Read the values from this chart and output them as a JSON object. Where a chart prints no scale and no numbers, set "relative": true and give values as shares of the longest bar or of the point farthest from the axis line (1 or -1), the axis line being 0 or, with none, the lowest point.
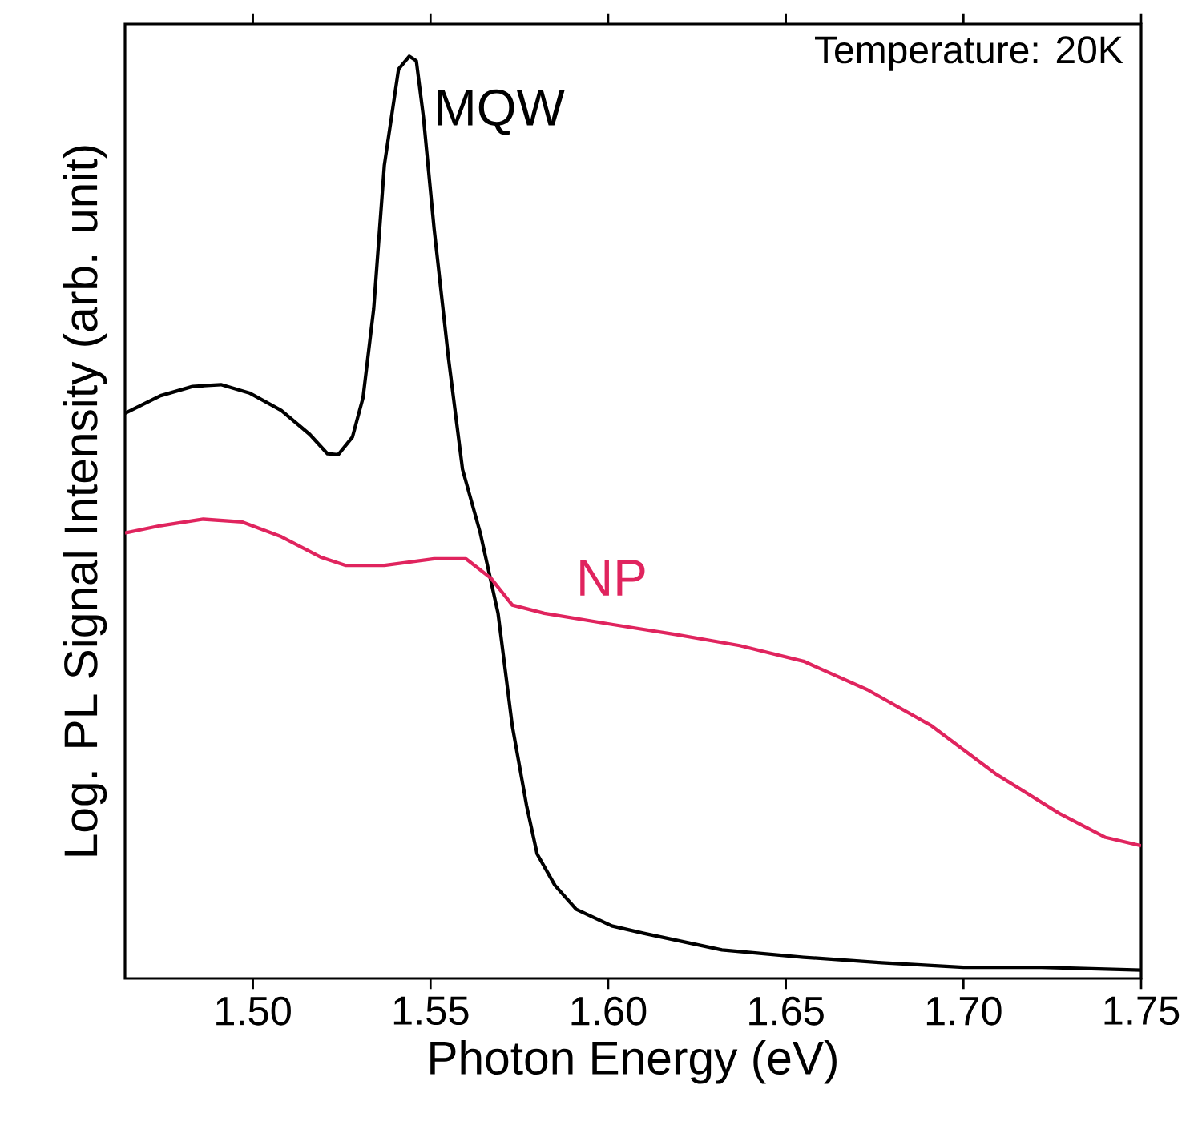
{
  "chart_data": {
    "type": "line",
    "relative": true,
    "xlabel": "Photon Energy (eV)",
    "ylabel": "Log. PL Signal Intensity (arb. unit)",
    "annotations": [
      "Temperature: 20K"
    ],
    "xlim": [
      1.464,
      1.75
    ],
    "xticks": [
      {
        "value": 1.5,
        "label": "1.50"
      },
      {
        "value": 1.55,
        "label": "1.55"
      },
      {
        "value": 1.6,
        "label": "1.60"
      },
      {
        "value": 1.65,
        "label": "1.65"
      },
      {
        "value": 1.7,
        "label": "1.70"
      },
      {
        "value": 1.75,
        "label": "1.75"
      }
    ],
    "grid": false,
    "legend": false,
    "marker": "none",
    "line_style": "solid",
    "series": [
      {
        "name": "MQW",
        "color": "#000000",
        "x": [
          1.464,
          1.474,
          1.483,
          1.491,
          1.499,
          1.508,
          1.516,
          1.521,
          1.524,
          1.528,
          1.531,
          1.534,
          1.537,
          1.541,
          1.544,
          1.546,
          1.548,
          1.551,
          1.555,
          1.559,
          1.564,
          1.569,
          1.573,
          1.577,
          1.58,
          1.585,
          1.591,
          1.601,
          1.61,
          1.632,
          1.655,
          1.677,
          1.7,
          1.722,
          1.75
        ],
        "values": [
          0.613,
          0.632,
          0.642,
          0.644,
          0.635,
          0.616,
          0.59,
          0.569,
          0.568,
          0.587,
          0.63,
          0.726,
          0.882,
          0.986,
          1.0,
          0.995,
          0.934,
          0.813,
          0.674,
          0.552,
          0.483,
          0.396,
          0.274,
          0.188,
          0.135,
          0.101,
          0.075,
          0.057,
          0.049,
          0.031,
          0.023,
          0.017,
          0.012,
          0.012,
          0.009
        ]
      },
      {
        "name": "NP",
        "color": "#e0245e",
        "x": [
          1.464,
          1.474,
          1.486,
          1.497,
          1.508,
          1.519,
          1.526,
          1.537,
          1.551,
          1.56,
          1.567,
          1.573,
          1.582,
          1.601,
          1.619,
          1.637,
          1.655,
          1.673,
          1.691,
          1.709,
          1.727,
          1.74,
          1.75
        ],
        "values": [
          0.483,
          0.491,
          0.498,
          0.495,
          0.479,
          0.457,
          0.448,
          0.448,
          0.455,
          0.455,
          0.434,
          0.405,
          0.396,
          0.384,
          0.373,
          0.361,
          0.344,
          0.313,
          0.274,
          0.222,
          0.179,
          0.153,
          0.144
        ]
      }
    ]
  }
}
